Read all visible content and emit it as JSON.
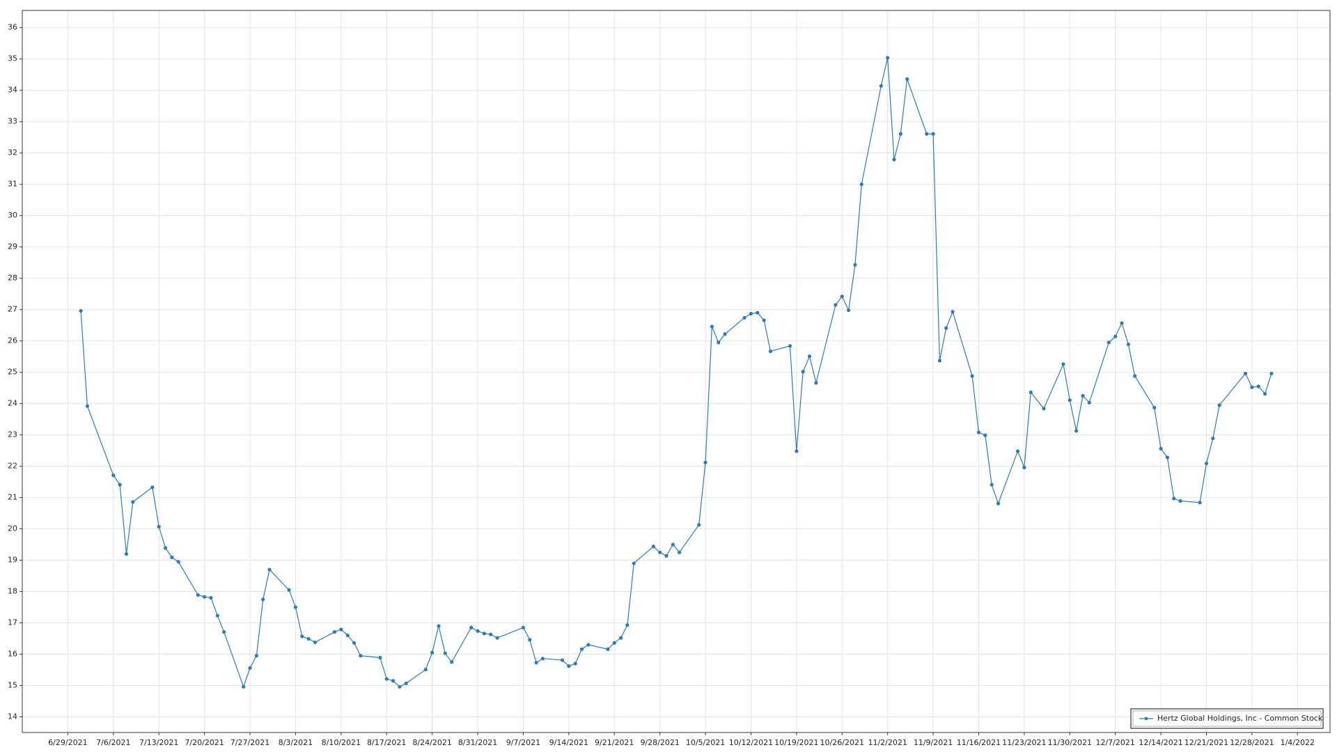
{
  "chart_data": {
    "type": "line",
    "x": [
      "7/1/2021",
      "7/2/2021",
      "7/6/2021",
      "7/7/2021",
      "7/8/2021",
      "7/9/2021",
      "7/12/2021",
      "7/13/2021",
      "7/14/2021",
      "7/15/2021",
      "7/16/2021",
      "7/19/2021",
      "7/20/2021",
      "7/21/2021",
      "7/22/2021",
      "7/23/2021",
      "7/26/2021",
      "7/27/2021",
      "7/28/2021",
      "7/29/2021",
      "7/30/2021",
      "8/2/2021",
      "8/3/2021",
      "8/4/2021",
      "8/5/2021",
      "8/6/2021",
      "8/9/2021",
      "8/10/2021",
      "8/11/2021",
      "8/12/2021",
      "8/13/2021",
      "8/16/2021",
      "8/17/2021",
      "8/18/2021",
      "8/19/2021",
      "8/20/2021",
      "8/23/2021",
      "8/24/2021",
      "8/25/2021",
      "8/26/2021",
      "8/27/2021",
      "8/30/2021",
      "8/31/2021",
      "9/1/2021",
      "9/2/2021",
      "9/3/2021",
      "9/7/2021",
      "9/8/2021",
      "9/9/2021",
      "9/10/2021",
      "9/13/2021",
      "9/14/2021",
      "9/15/2021",
      "9/16/2021",
      "9/17/2021",
      "9/20/2021",
      "9/21/2021",
      "9/22/2021",
      "9/23/2021",
      "9/24/2021",
      "9/27/2021",
      "9/28/2021",
      "9/29/2021",
      "9/30/2021",
      "10/1/2021",
      "10/4/2021",
      "10/5/2021",
      "10/6/2021",
      "10/7/2021",
      "10/8/2021",
      "10/11/2021",
      "10/12/2021",
      "10/13/2021",
      "10/14/2021",
      "10/15/2021",
      "10/18/2021",
      "10/19/2021",
      "10/20/2021",
      "10/21/2021",
      "10/22/2021",
      "10/25/2021",
      "10/26/2021",
      "10/27/2021",
      "10/28/2021",
      "10/29/2021",
      "11/1/2021",
      "11/2/2021",
      "11/3/2021",
      "11/4/2021",
      "11/5/2021",
      "11/8/2021",
      "11/9/2021",
      "11/10/2021",
      "11/11/2021",
      "11/12/2021",
      "11/15/2021",
      "11/16/2021",
      "11/17/2021",
      "11/18/2021",
      "11/19/2021",
      "11/22/2021",
      "11/23/2021",
      "11/24/2021",
      "11/26/2021",
      "11/29/2021",
      "11/30/2021",
      "12/1/2021",
      "12/2/2021",
      "12/3/2021",
      "12/6/2021",
      "12/7/2021",
      "12/8/2021",
      "12/9/2021",
      "12/10/2021",
      "12/13/2021",
      "12/14/2021",
      "12/15/2021",
      "12/16/2021",
      "12/17/2021",
      "12/20/2021",
      "12/21/2021",
      "12/22/2021",
      "12/23/2021",
      "12/27/2021",
      "12/28/2021",
      "12/29/2021",
      "12/30/2021",
      "12/31/2021"
    ],
    "series": [
      {
        "name": "Hertz Global Holdings, Inc - Common Stock",
        "color": "#2b7bba",
        "values": [
          26.96,
          23.92,
          21.71,
          21.41,
          19.2,
          20.86,
          21.33,
          20.07,
          19.39,
          19.09,
          18.95,
          17.89,
          17.83,
          17.8,
          17.23,
          16.71,
          14.96,
          15.56,
          15.95,
          17.75,
          18.7,
          18.05,
          17.5,
          16.57,
          16.49,
          16.38,
          16.71,
          16.79,
          16.6,
          16.36,
          15.95,
          15.89,
          15.21,
          15.15,
          14.96,
          15.07,
          15.51,
          16.05,
          16.9,
          16.03,
          15.75,
          16.85,
          16.74,
          16.66,
          16.63,
          16.52,
          16.85,
          16.46,
          15.73,
          15.86,
          15.81,
          15.62,
          15.7,
          16.16,
          16.3,
          16.16,
          16.36,
          16.52,
          16.93,
          18.9,
          19.44,
          19.25,
          19.14,
          19.5,
          19.25,
          20.13,
          22.12,
          26.46,
          25.95,
          26.22,
          26.74,
          26.87,
          26.9,
          26.66,
          25.67,
          25.84,
          22.48,
          25.02,
          25.51,
          24.66,
          27.15,
          27.42,
          26.98,
          28.43,
          31.0,
          34.14,
          35.04,
          31.79,
          32.61,
          34.36,
          32.61,
          32.61,
          25.37,
          26.41,
          26.93,
          24.88,
          23.08,
          22.99,
          21.41,
          20.81,
          22.48,
          21.96,
          24.36,
          23.84,
          25.26,
          24.11,
          23.13,
          24.25,
          24.03,
          25.95,
          26.14,
          26.57,
          25.89,
          24.88,
          23.87,
          22.56,
          22.28,
          20.97,
          20.89,
          20.84,
          22.09,
          22.89,
          23.95,
          24.96,
          24.52,
          24.55,
          24.31,
          24.96
        ]
      }
    ],
    "xlim": [
      "6/22/2021",
      "1/9/2022"
    ],
    "xticks": [
      "6/29/2021",
      "7/6/2021",
      "7/13/2021",
      "7/20/2021",
      "7/27/2021",
      "8/3/2021",
      "8/10/2021",
      "8/17/2021",
      "8/24/2021",
      "8/31/2021",
      "9/7/2021",
      "9/14/2021",
      "9/21/2021",
      "9/28/2021",
      "10/5/2021",
      "10/12/2021",
      "10/19/2021",
      "10/26/2021",
      "11/2/2021",
      "11/9/2021",
      "11/16/2021",
      "11/23/2021",
      "11/30/2021",
      "12/7/2021",
      "12/14/2021",
      "12/21/2021",
      "12/28/2021",
      "1/4/2022"
    ],
    "ylim": [
      13.5,
      36.55
    ],
    "yticks": [
      14,
      15,
      16,
      17,
      18,
      19,
      20,
      21,
      22,
      23,
      24,
      25,
      26,
      27,
      28,
      29,
      30,
      31,
      32,
      33,
      34,
      35,
      36
    ],
    "grid": true,
    "legend": "lower right"
  }
}
